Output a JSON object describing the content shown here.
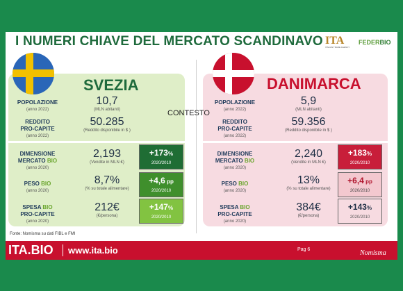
{
  "slide": {
    "title": "I NUMERI CHIAVE DEL MERCATO SCANDINAVO",
    "context_label": "CONTESTO",
    "source": "Fonte: Nomisma su dati FIBL e FMI",
    "logos": {
      "ita": "ITA",
      "ita_sub": "ITALIAN TRADE AGENCY",
      "feder_a": "FEDER",
      "feder_b": "BIO"
    }
  },
  "sweden": {
    "name": "SVEZIA",
    "flag_colors": {
      "field": "#2a66b8",
      "cross": "#f2c000"
    },
    "popolazione": {
      "label": "POPOLAZIONE",
      "year": "(anno 2022)",
      "value": "10,7",
      "unit": "(MLN abitanti)"
    },
    "reddito": {
      "label_a": "REDDITO",
      "label_b": "PRO-CAPITE",
      "year": "(anno 2022)",
      "value": "50.285",
      "unit": "(Reddito disponibile in $ )"
    },
    "dimensione": {
      "label_a": "DIMENSIONE",
      "label_b": "MERCATO ",
      "label_bio": "BIO",
      "year": "(anno 2020)",
      "value": "2,193",
      "unit": "(Vendite in MLN €)",
      "growth": "+173",
      "growth_unit": "%",
      "period": "2020/2010"
    },
    "peso": {
      "label_a": "PESO ",
      "label_bio": "BIO",
      "year": "(anno 2020)",
      "value": "8,7%",
      "unit": "(% su totale alimentare)",
      "growth": "+4,6",
      "growth_unit": " pp",
      "period": "2020/2010"
    },
    "spesa": {
      "label_a": "SPESA ",
      "label_bio": "BIO",
      "label_b": "PRO-CAPITE",
      "year": "(anno 2020)",
      "value": "212€",
      "unit": "(€/persona)",
      "growth": "+147",
      "growth_unit": "%",
      "period": "2020/2010"
    }
  },
  "denmark": {
    "name": "DANIMARCA",
    "flag_colors": {
      "field": "#c8102e",
      "cross": "#ffffff"
    },
    "popolazione": {
      "label": "POPOLAZIONE",
      "year": "(anno 2022)",
      "value": "5,9",
      "unit": "(MLN abitanti)"
    },
    "reddito": {
      "label_a": "REDDITO",
      "label_b": "PRO-CAPITE",
      "year": "(anno 2022)",
      "value": "59.356",
      "unit": "(Reddito disponibile in $ )"
    },
    "dimensione": {
      "label_a": "DIMENSIONE",
      "label_b": "MERCATO ",
      "label_bio": "BIO",
      "year": "(anno 2020)",
      "value": "2,240",
      "unit": "(Vendite in MLN €)",
      "growth": "+183",
      "growth_unit": "%",
      "period": "2020/2010"
    },
    "peso": {
      "label_a": "PESO ",
      "label_bio": "BIO",
      "year": "(anno 2020)",
      "value": "13%",
      "unit": "(% su totale alimentare)",
      "growth": "+6,4",
      "growth_unit": " pp",
      "period": "2020/2010"
    },
    "spesa": {
      "label_a": "SPESA ",
      "label_bio": "BIO",
      "label_b": "PRO-CAPITE",
      "year": "(anno 2020)",
      "value": "384€",
      "unit": "(€/persona)",
      "growth": "+143",
      "growth_unit": "%",
      "period": "2020/2010"
    }
  },
  "footer": {
    "logo": "ITA.BIO",
    "url": "www.ita.bio",
    "page": "Pag 6",
    "brand": "Nomisma"
  }
}
